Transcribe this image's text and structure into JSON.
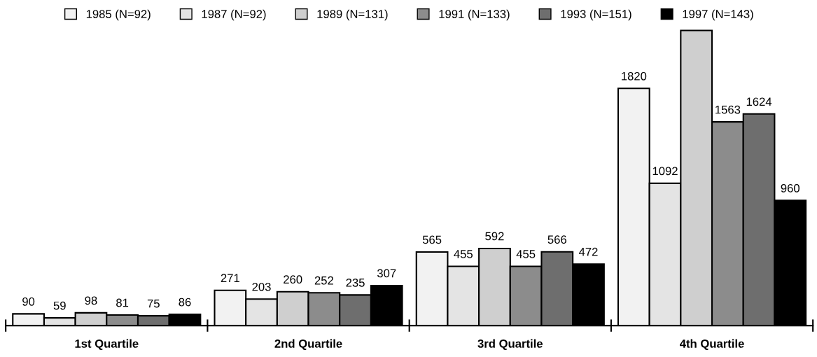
{
  "chart_data": {
    "type": "bar",
    "categories": [
      "1st Quartile",
      "2nd Quartile",
      "3rd Quartile",
      "4th Quartile"
    ],
    "series": [
      {
        "name": "1985 (N=92)",
        "color": "#f2f2f2",
        "values": [
          90,
          271,
          565,
          1820
        ],
        "value_labels": [
          "90",
          "271",
          "565",
          "1820"
        ]
      },
      {
        "name": "1987 (N=92)",
        "color": "#e4e4e4",
        "values": [
          59,
          203,
          455,
          1092
        ],
        "value_labels": [
          "59",
          "203",
          "455",
          "1092"
        ]
      },
      {
        "name": "1989 (N=131)",
        "color": "#cfcfcf",
        "values": [
          98,
          260,
          592,
          2265
        ],
        "value_labels": [
          "98",
          "260",
          "592",
          null
        ]
      },
      {
        "name": "1991 (N=133)",
        "color": "#8c8c8c",
        "values": [
          81,
          252,
          455,
          1563
        ],
        "value_labels": [
          "81",
          "252",
          "455",
          "1563"
        ]
      },
      {
        "name": "1993 (N=151)",
        "color": "#6e6e6e",
        "values": [
          75,
          235,
          566,
          1624
        ],
        "value_labels": [
          "75",
          "235",
          "566",
          "1624"
        ]
      },
      {
        "name": "1997 (N=143)",
        "color": "#000000",
        "values": [
          86,
          307,
          472,
          960
        ],
        "value_labels": [
          "86",
          "307",
          "472",
          "960"
        ]
      }
    ],
    "legend": "top",
    "grid": false
  }
}
